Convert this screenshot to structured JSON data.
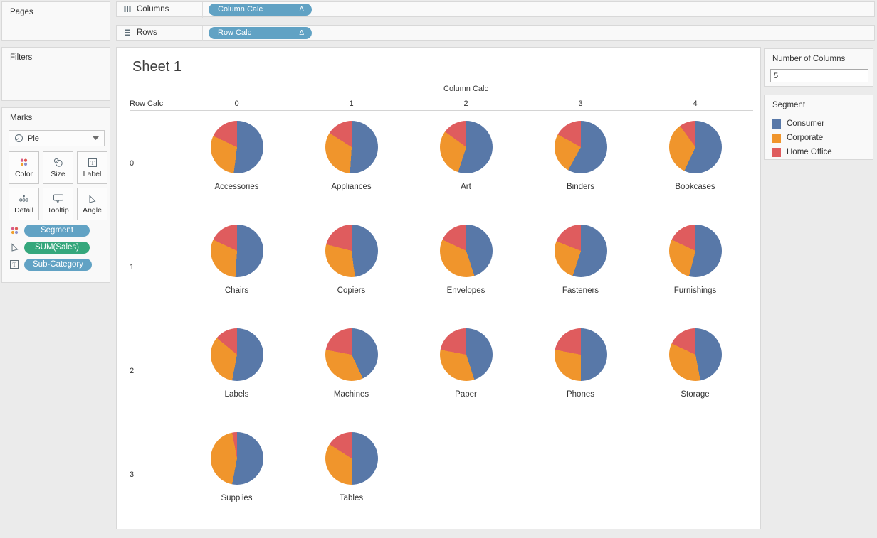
{
  "shelves": {
    "columns": {
      "label": "Columns",
      "icon": "columns-icon",
      "pill": {
        "label": "Column Calc",
        "badge": "Δ"
      }
    },
    "rows": {
      "label": "Rows",
      "icon": "rows-icon",
      "pill": {
        "label": "Row Calc",
        "badge": "Δ"
      }
    }
  },
  "sidebar": {
    "pages": {
      "title": "Pages"
    },
    "filters": {
      "title": "Filters"
    },
    "marks": {
      "title": "Marks",
      "mark_type": "Pie",
      "mark_type_icon": "pie-chart-icon",
      "buttons": [
        {
          "label": "Color",
          "icon": "color-dots-icon"
        },
        {
          "label": "Size",
          "icon": "size-icon"
        },
        {
          "label": "Label",
          "icon": "label-icon"
        },
        {
          "label": "Detail",
          "icon": "detail-icon"
        },
        {
          "label": "Tooltip",
          "icon": "tooltip-icon"
        },
        {
          "label": "Angle",
          "icon": "angle-icon"
        }
      ],
      "pills": [
        {
          "label": "Segment",
          "icon": "color-dots-icon",
          "color": "#61a2c4"
        },
        {
          "label": "SUM(Sales)",
          "icon": "angle-icon",
          "color": "#35a77c"
        },
        {
          "label": "Sub-Category",
          "icon": "label-icon",
          "color": "#61a2c4"
        }
      ]
    }
  },
  "sheet": {
    "title": "Sheet 1",
    "column_axis_title": "Column Calc",
    "row_axis_title": "Row Calc",
    "column_labels": [
      "0",
      "1",
      "2",
      "3",
      "4"
    ],
    "row_labels": [
      "0",
      "1",
      "2",
      "3"
    ]
  },
  "parameter": {
    "title": "Number of Columns",
    "value": "5"
  },
  "legend": {
    "title": "Segment",
    "items": [
      {
        "label": "Consumer",
        "color": "#5878a8"
      },
      {
        "label": "Corporate",
        "color": "#f0952c"
      },
      {
        "label": "Home Office",
        "color": "#df5c5e"
      }
    ]
  },
  "chart_data": {
    "type": "pie",
    "title": "Sheet 1",
    "grid": {
      "rows": 4,
      "cols": 5,
      "row_field": "Row Calc",
      "col_field": "Column Calc"
    },
    "segments": [
      "Consumer",
      "Corporate",
      "Home Office"
    ],
    "segment_colors": [
      "#5878a8",
      "#f0952c",
      "#df5c5e"
    ],
    "pies": [
      {
        "name": "Accessories",
        "row": 0,
        "col": 0,
        "values": [
          52,
          30,
          18
        ]
      },
      {
        "name": "Appliances",
        "row": 0,
        "col": 1,
        "values": [
          51,
          33,
          16
        ]
      },
      {
        "name": "Art",
        "row": 0,
        "col": 2,
        "values": [
          55,
          30,
          15
        ]
      },
      {
        "name": "Binders",
        "row": 0,
        "col": 3,
        "values": [
          58,
          25,
          17
        ]
      },
      {
        "name": "Bookcases",
        "row": 0,
        "col": 4,
        "values": [
          57,
          33,
          10
        ]
      },
      {
        "name": "Chairs",
        "row": 1,
        "col": 0,
        "values": [
          51,
          31,
          18
        ]
      },
      {
        "name": "Copiers",
        "row": 1,
        "col": 1,
        "values": [
          48,
          31,
          21
        ]
      },
      {
        "name": "Envelopes",
        "row": 1,
        "col": 2,
        "values": [
          45,
          37,
          18
        ]
      },
      {
        "name": "Fasteners",
        "row": 1,
        "col": 3,
        "values": [
          55,
          26,
          19
        ]
      },
      {
        "name": "Furnishings",
        "row": 1,
        "col": 4,
        "values": [
          54,
          28,
          18
        ]
      },
      {
        "name": "Labels",
        "row": 2,
        "col": 0,
        "values": [
          53,
          33,
          14
        ]
      },
      {
        "name": "Machines",
        "row": 2,
        "col": 1,
        "values": [
          43,
          35,
          22
        ]
      },
      {
        "name": "Paper",
        "row": 2,
        "col": 2,
        "values": [
          45,
          33,
          22
        ]
      },
      {
        "name": "Phones",
        "row": 2,
        "col": 3,
        "values": [
          50,
          28,
          22
        ]
      },
      {
        "name": "Storage",
        "row": 2,
        "col": 4,
        "values": [
          47,
          35,
          18
        ]
      },
      {
        "name": "Supplies",
        "row": 3,
        "col": 0,
        "values": [
          53,
          44,
          3
        ]
      },
      {
        "name": "Tables",
        "row": 3,
        "col": 1,
        "values": [
          50,
          34,
          16
        ]
      }
    ]
  }
}
